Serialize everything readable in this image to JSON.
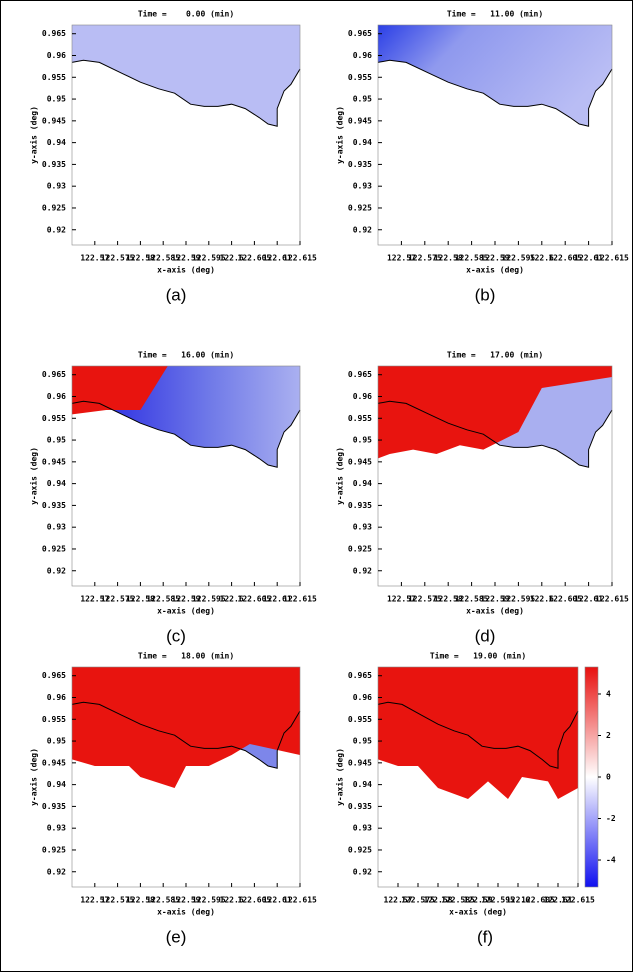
{
  "chart_data": [
    {
      "type": "heatmap",
      "title": "Time =    0.00 (min)",
      "caption": "(a)",
      "xlabel": "x-axis (deg)",
      "ylabel": "y-axis (deg)",
      "xlim": [
        122.565,
        122.615
      ],
      "xticks": [
        122.57,
        122.575,
        122.58,
        122.585,
        122.59,
        122.595,
        122.6,
        122.605,
        122.61,
        122.615
      ],
      "ylim": [
        0.9165,
        0.967
      ],
      "yticks": [
        0.965,
        0.96,
        0.955,
        0.95,
        0.945,
        0.94,
        0.935,
        0.93,
        0.925,
        0.92
      ]
    },
    {
      "type": "heatmap",
      "title": "Time =   11.00 (min)",
      "caption": "(b)",
      "xlabel": "x-axis (deg)",
      "ylabel": "y-axis (deg)",
      "xlim": [
        122.565,
        122.615
      ],
      "xticks": [
        122.57,
        122.575,
        122.58,
        122.585,
        122.59,
        122.595,
        122.6,
        122.605,
        122.61,
        122.615
      ],
      "ylim": [
        0.9165,
        0.967
      ],
      "yticks": [
        0.965,
        0.96,
        0.955,
        0.95,
        0.945,
        0.94,
        0.935,
        0.93,
        0.925,
        0.92
      ]
    },
    {
      "type": "heatmap",
      "title": "Time =   16.00 (min)",
      "caption": "(c)",
      "xlabel": "x-axis (deg)",
      "ylabel": "y-axis (deg)",
      "xlim": [
        122.565,
        122.615
      ],
      "xticks": [
        122.57,
        122.575,
        122.58,
        122.585,
        122.59,
        122.595,
        122.6,
        122.605,
        122.61,
        122.615
      ],
      "ylim": [
        0.9165,
        0.967
      ],
      "yticks": [
        0.965,
        0.96,
        0.955,
        0.95,
        0.945,
        0.94,
        0.935,
        0.93,
        0.925,
        0.92
      ]
    },
    {
      "type": "heatmap",
      "title": "Time =   17.00 (min)",
      "caption": "(d)",
      "xlabel": "x-axis (deg)",
      "ylabel": "y-axis (deg)",
      "xlim": [
        122.565,
        122.615
      ],
      "xticks": [
        122.57,
        122.575,
        122.58,
        122.585,
        122.59,
        122.595,
        122.6,
        122.605,
        122.61,
        122.615
      ],
      "ylim": [
        0.9165,
        0.967
      ],
      "yticks": [
        0.965,
        0.96,
        0.955,
        0.95,
        0.945,
        0.94,
        0.935,
        0.93,
        0.925,
        0.92
      ]
    },
    {
      "type": "heatmap",
      "title": "Time =   18.00 (min)",
      "caption": "(e)",
      "xlabel": "x-axis (deg)",
      "ylabel": "y-axis (deg)",
      "xlim": [
        122.565,
        122.615
      ],
      "xticks": [
        122.57,
        122.575,
        122.58,
        122.585,
        122.59,
        122.595,
        122.6,
        122.605,
        122.61,
        122.615
      ],
      "ylim": [
        0.9165,
        0.967
      ],
      "yticks": [
        0.965,
        0.96,
        0.955,
        0.95,
        0.945,
        0.94,
        0.935,
        0.93,
        0.925,
        0.92
      ]
    },
    {
      "type": "heatmap",
      "title": "Time =   19.00 (min)",
      "caption": "(f)",
      "xlabel": "x-axis (deg)",
      "ylabel": "y-axis (deg)",
      "xlim": [
        122.565,
        122.615
      ],
      "xticks": [
        122.57,
        122.575,
        122.58,
        122.585,
        122.59,
        122.595,
        122.6,
        122.605,
        122.61,
        122.615
      ],
      "ylim": [
        0.9165,
        0.967
      ],
      "yticks": [
        0.965,
        0.96,
        0.955,
        0.95,
        0.945,
        0.94,
        0.935,
        0.93,
        0.925,
        0.92
      ],
      "colorbar": {
        "lim": [
          -5.3,
          5.3
        ],
        "ticks": [
          4,
          2,
          0,
          -2,
          -4
        ]
      }
    }
  ]
}
